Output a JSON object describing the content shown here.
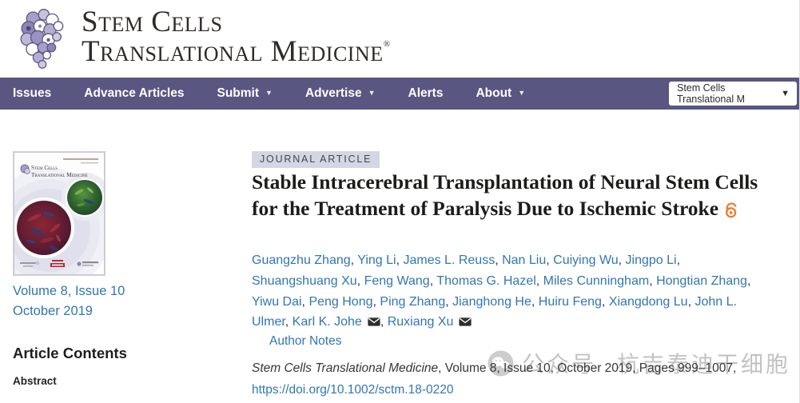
{
  "header": {
    "logo_line1": "Stem Cells",
    "logo_line2": "Translational Medicine",
    "registered_mark": "®"
  },
  "nav": {
    "items": [
      {
        "label": "Issues",
        "has_dropdown": false
      },
      {
        "label": "Advance Articles",
        "has_dropdown": false
      },
      {
        "label": "Submit",
        "has_dropdown": true
      },
      {
        "label": "Advertise",
        "has_dropdown": true
      },
      {
        "label": "Alerts",
        "has_dropdown": false
      },
      {
        "label": "About",
        "has_dropdown": true
      }
    ],
    "journal_select": {
      "value": "Stem Cells Translational M"
    }
  },
  "sidebar": {
    "cover": {
      "header_line1": "Stem Cells",
      "header_line2": "Translational Medicine"
    },
    "issue_link_line1": "Volume 8, Issue 10",
    "issue_link_line2": "October 2019",
    "contents_heading": "Article Contents",
    "contents_items": [
      "Abstract"
    ]
  },
  "article": {
    "badge": "JOURNAL ARTICLE",
    "title": "Stable Intracerebral Transplantation of Neural Stem Cells for the Treatment of Paralysis Due to Ischemic Stroke",
    "authors": [
      {
        "name": "Guangzhu Zhang",
        "envelope": false
      },
      {
        "name": "Ying Li",
        "envelope": false
      },
      {
        "name": "James L. Reuss",
        "envelope": false
      },
      {
        "name": "Nan Liu",
        "envelope": false
      },
      {
        "name": "Cuiying Wu",
        "envelope": false
      },
      {
        "name": "Jingpo Li",
        "envelope": false
      },
      {
        "name": "Shuangshuang Xu",
        "envelope": false
      },
      {
        "name": "Feng Wang",
        "envelope": false
      },
      {
        "name": "Thomas G. Hazel",
        "envelope": false
      },
      {
        "name": "Miles Cunningham",
        "envelope": false
      },
      {
        "name": "Hongtian Zhang",
        "envelope": false
      },
      {
        "name": "Yiwu Dai",
        "envelope": false
      },
      {
        "name": "Peng Hong",
        "envelope": false
      },
      {
        "name": "Ping Zhang",
        "envelope": false
      },
      {
        "name": "Jianghong He",
        "envelope": false
      },
      {
        "name": "Huiru Feng",
        "envelope": false
      },
      {
        "name": "Xiangdong Lu",
        "envelope": false
      },
      {
        "name": "John L. Ulmer",
        "envelope": false
      },
      {
        "name": "Karl K. Johe",
        "envelope": true
      },
      {
        "name": "Ruxiang Xu",
        "envelope": true
      }
    ],
    "author_notes_label": "Author Notes",
    "citation": {
      "journal_italic": "Stem Cells Translational Medicine",
      "rest": ", Volume 8, Issue 10, October 2019, Pages 999–1007,",
      "doi": "https://doi.org/10.1002/sctm.18-0220"
    }
  },
  "watermark": {
    "text1": "公众号",
    "text2": "杭吉泰迪干细胞"
  },
  "icons": {
    "caret": "▼"
  },
  "colors": {
    "nav_purple": "#5a5682",
    "link_blue": "#3276b1",
    "badge_bg": "#d5d6e3",
    "oa_orange": "#e87f35",
    "watermark_gray": "#9e9e9e"
  }
}
